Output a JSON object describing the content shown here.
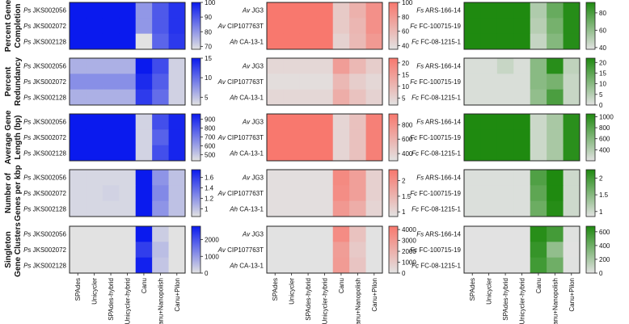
{
  "chart_data": {
    "type": "heatmap",
    "methods": [
      "SPAdes",
      "Unicycler",
      "SPAdes-hybrid",
      "Unicycler-hybrid",
      "Canu",
      "Canu+Nanopolish",
      "Canu+Pilon"
    ],
    "metric_labels": [
      [
        "Percent Gene",
        "Completion"
      ],
      [
        "Percent",
        "Redundancy"
      ],
      [
        "Average Gene",
        "Length (bp)"
      ],
      [
        "Number of",
        "Genes per kbp"
      ],
      [
        "Singleton",
        "Gene Clusters"
      ]
    ],
    "groups": [
      {
        "color": "#0a1aee",
        "strains": [
          [
            "Ps",
            "JKS002056"
          ],
          [
            "Ps",
            "JKS002072"
          ],
          [
            "Ps",
            "JKS002128"
          ]
        ],
        "panels": [
          {
            "range": [
              68,
              100
            ],
            "ticks": [
              70,
              80,
              90,
              100
            ],
            "values": [
              [
                100,
                100,
                100,
                100,
                80,
                90,
                96
              ],
              [
                100,
                100,
                100,
                100,
                80,
                90,
                96
              ],
              [
                100,
                100,
                100,
                100,
                68,
                88,
                95
              ]
            ]
          },
          {
            "range": [
              3,
              15
            ],
            "ticks": [
              5,
              10,
              15
            ],
            "values": [
              [
                6,
                6,
                6,
                6,
                15,
                12,
                4
              ],
              [
                8,
                8,
                8,
                8,
                14,
                11,
                4
              ],
              [
                6,
                6,
                6,
                6,
                13,
                10,
                4
              ]
            ]
          },
          {
            "range": [
              430,
              960
            ],
            "ticks": [
              500,
              600,
              700,
              800,
              900
            ],
            "values": [
              [
                960,
                960,
                960,
                960,
                470,
                820,
                930
              ],
              [
                960,
                960,
                960,
                960,
                470,
                770,
                930
              ],
              [
                960,
                960,
                960,
                960,
                470,
                820,
                930
              ]
            ]
          },
          {
            "range": [
              0.85,
              1.75
            ],
            "ticks": [
              1.0,
              1.2,
              1.4,
              1.6
            ],
            "values": [
              [
                0.9,
                0.9,
                0.9,
                0.9,
                1.75,
                1.2,
                1.0
              ],
              [
                0.9,
                0.9,
                0.92,
                0.9,
                1.75,
                1.25,
                1.0
              ],
              [
                0.9,
                0.9,
                0.9,
                0.9,
                1.75,
                1.2,
                1.0
              ]
            ]
          },
          {
            "range": [
              0,
              2800
            ],
            "ticks": [
              0,
              1000,
              2000
            ],
            "values": [
              [
                0,
                0,
                0,
                0,
                2800,
                300,
                0
              ],
              [
                0,
                0,
                0,
                0,
                2300,
                500,
                0
              ],
              [
                0,
                0,
                0,
                0,
                2700,
                400,
                0
              ]
            ]
          }
        ]
      },
      {
        "color": "#f8786e",
        "strains": [
          [
            "Av",
            "JG3"
          ],
          [
            "Av",
            "CIP107763T"
          ],
          [
            "Ah",
            "CA-13-1"
          ]
        ],
        "panels": [
          {
            "range": [
              35,
              100
            ],
            "ticks": [
              40,
              60,
              80,
              100
            ],
            "values": [
              [
                100,
                100,
                100,
                100,
                50,
                65,
                85
              ],
              [
                100,
                100,
                100,
                100,
                50,
                62,
                85
              ],
              [
                100,
                100,
                100,
                100,
                45,
                60,
                80
              ]
            ]
          },
          {
            "range": [
              2,
              22
            ],
            "ticks": [
              5,
              10,
              15,
              20
            ],
            "values": [
              [
                4,
                4,
                4,
                4,
                15,
                10,
                6
              ],
              [
                3,
                3,
                3,
                3,
                10,
                6,
                4
              ],
              [
                4,
                4,
                4,
                4,
                12,
                8,
                5
              ]
            ]
          },
          {
            "range": [
              300,
              950
            ],
            "ticks": [
              400,
              600,
              800
            ],
            "values": [
              [
                950,
                950,
                950,
                950,
                380,
                500,
                900
              ],
              [
                950,
                950,
                950,
                950,
                380,
                500,
                900
              ],
              [
                950,
                950,
                950,
                950,
                380,
                500,
                900
              ]
            ]
          },
          {
            "range": [
              0.85,
              2.35
            ],
            "ticks": [
              1.0,
              1.5,
              2.0
            ],
            "values": [
              [
                0.9,
                0.9,
                0.9,
                0.9,
                2.1,
                1.8,
                1.1
              ],
              [
                0.9,
                0.9,
                0.9,
                0.9,
                2.05,
                1.8,
                1.1
              ],
              [
                0.9,
                0.9,
                0.9,
                0.9,
                1.9,
                1.6,
                1.05
              ]
            ]
          },
          {
            "range": [
              0,
              4300
            ],
            "ticks": [
              0,
              1000,
              2000,
              3000,
              4000
            ],
            "values": [
              [
                0,
                0,
                0,
                0,
                3500,
                1300,
                0
              ],
              [
                0,
                0,
                0,
                0,
                2800,
                1000,
                0
              ],
              [
                0,
                0,
                0,
                0,
                2900,
                1200,
                0
              ]
            ]
          }
        ]
      },
      {
        "color": "#1f8a10",
        "strains": [
          [
            "Fs",
            "ARS-166-14"
          ],
          [
            "Fc",
            "FC-100715-19"
          ],
          [
            "Fc",
            "FC-08-1215-1"
          ]
        ],
        "panels": [
          {
            "range": [
              38,
              92
            ],
            "ticks": [
              40,
              60,
              80
            ],
            "values": [
              [
                92,
                92,
                92,
                92,
                52,
                72,
                90
              ],
              [
                92,
                92,
                92,
                92,
                50,
                68,
                90
              ],
              [
                92,
                92,
                92,
                92,
                46,
                64,
                90
              ]
            ]
          },
          {
            "range": [
              0,
              22
            ],
            "ticks": [
              0,
              5,
              10,
              15,
              20
            ],
            "values": [
              [
                1,
                1,
                3,
                1,
                10,
                21,
                4
              ],
              [
                1,
                1,
                1,
                1,
                10,
                12,
                3
              ],
              [
                1,
                1,
                1,
                1,
                9,
                17,
                3
              ]
            ]
          },
          {
            "range": [
              200,
              1050
            ],
            "ticks": [
              400,
              600,
              800,
              1000
            ],
            "values": [
              [
                1050,
                1050,
                1050,
                1050,
                300,
                450,
                1000
              ],
              [
                1050,
                1050,
                1050,
                1050,
                300,
                450,
                1000
              ],
              [
                1050,
                1050,
                1050,
                1050,
                300,
                450,
                1000
              ]
            ]
          },
          {
            "range": [
              0.85,
              2.25
            ],
            "ticks": [
              1.0,
              1.5,
              2.0
            ],
            "values": [
              [
                0.9,
                0.9,
                0.9,
                0.9,
                1.9,
                2.25,
                1.0
              ],
              [
                0.9,
                0.9,
                0.9,
                0.9,
                1.8,
                2.25,
                1.0
              ],
              [
                0.9,
                0.9,
                0.9,
                0.9,
                1.7,
                2.2,
                1.0
              ]
            ]
          },
          {
            "range": [
              0,
              680
            ],
            "ticks": [
              0,
              200,
              400,
              600
            ],
            "values": [
              [
                0,
                0,
                0,
                0,
                650,
                550,
                10
              ],
              [
                0,
                0,
                0,
                0,
                600,
                280,
                5
              ],
              [
                0,
                0,
                0,
                0,
                560,
                400,
                8
              ]
            ]
          }
        ]
      }
    ]
  }
}
